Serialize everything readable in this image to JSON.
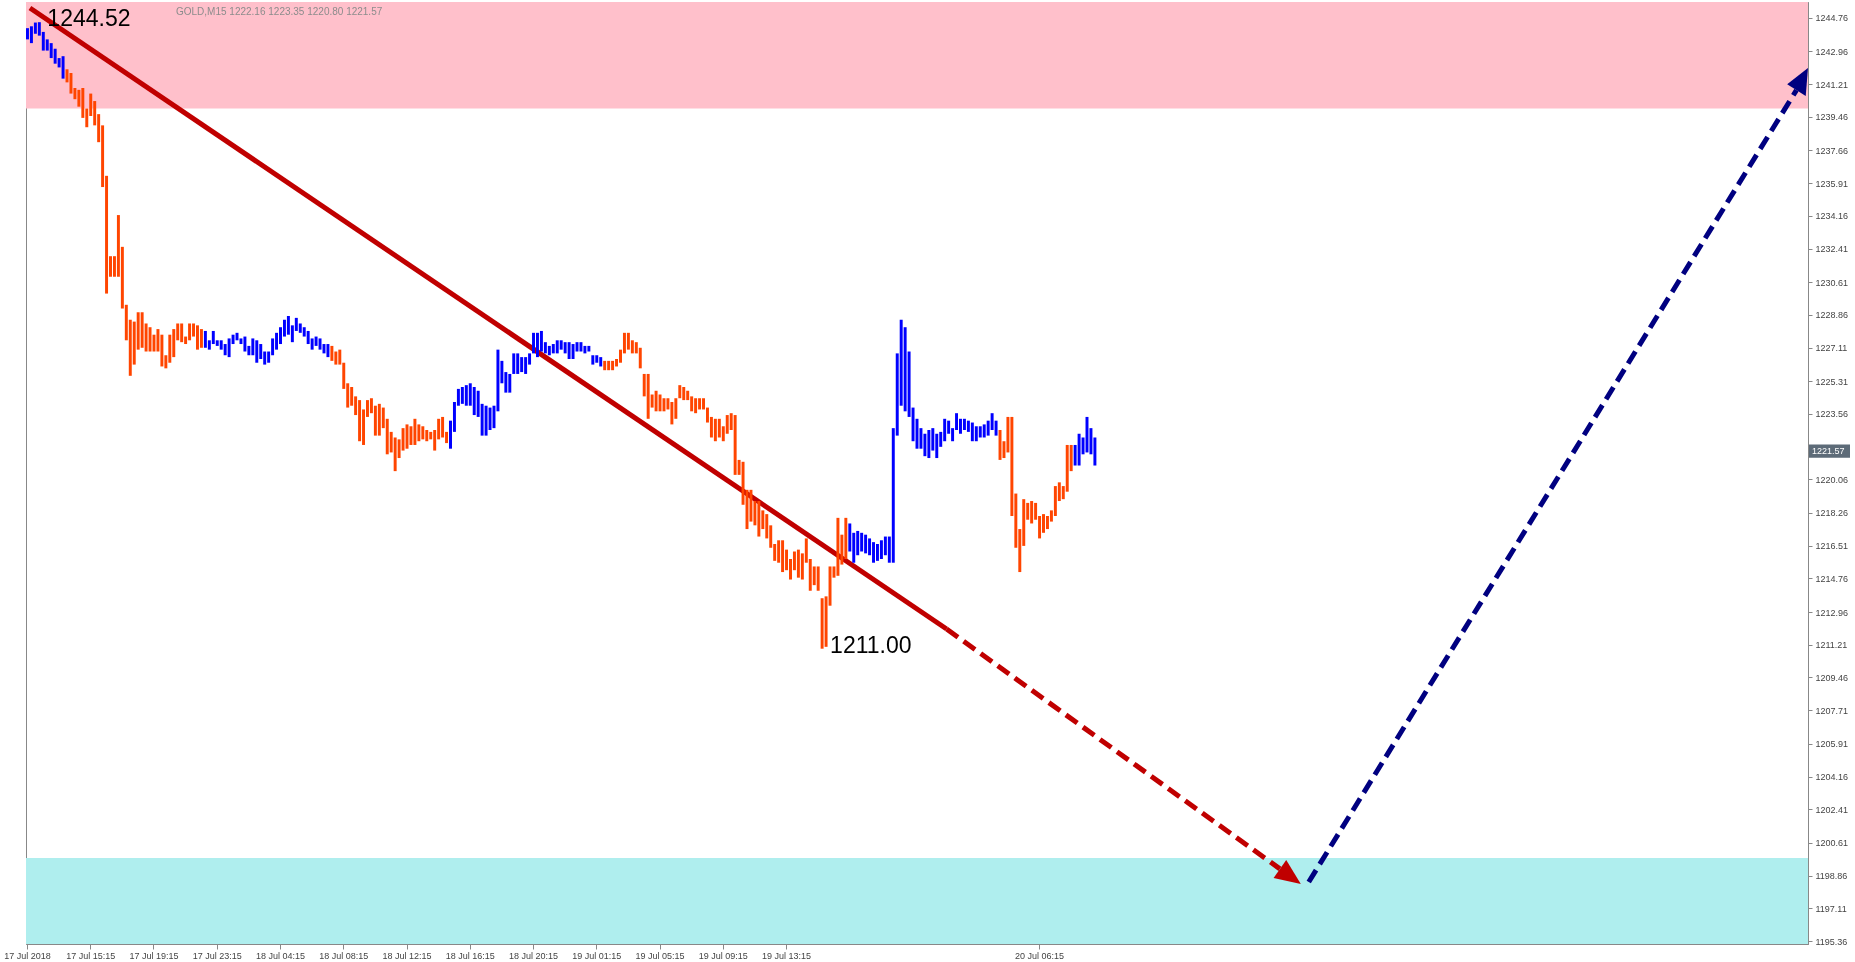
{
  "chart_data": {
    "type": "bar",
    "title": "GOLD,M15  1222.16 1223.35 1220.80 1221.57",
    "categories": [
      "17 Jul 2018",
      null,
      null,
      null,
      null,
      null,
      null,
      null,
      null,
      null,
      null,
      null,
      null,
      null,
      null,
      null,
      "17 Jul 15:15",
      null,
      null,
      null,
      null,
      null,
      null,
      null,
      null,
      null,
      null,
      null,
      null,
      null,
      null,
      null,
      "17 Jul 19:15",
      null,
      null,
      null,
      null,
      null,
      null,
      null,
      null,
      null,
      null,
      null,
      null,
      null,
      null,
      null,
      "17 Jul 23:15",
      null,
      null,
      null,
      null,
      null,
      null,
      null,
      null,
      null,
      null,
      null,
      null,
      null,
      null,
      null,
      "18 Jul 04:15",
      null,
      null,
      null,
      null,
      null,
      null,
      null,
      null,
      null,
      null,
      null,
      null,
      null,
      null,
      null,
      "18 Jul 08:15",
      null,
      null,
      null,
      null,
      null,
      null,
      null,
      null,
      null,
      null,
      null,
      null,
      null,
      null,
      null,
      "18 Jul 12:15",
      null,
      null,
      null,
      null,
      null,
      null,
      null,
      null,
      null,
      null,
      null,
      null,
      null,
      null,
      null,
      "18 Jul 16:15",
      null,
      null,
      null,
      null,
      null,
      null,
      null,
      null,
      null,
      null,
      null,
      null,
      null,
      null,
      null,
      "18 Jul 20:15",
      null,
      null,
      null,
      null,
      null,
      null,
      null,
      null,
      null,
      null,
      null,
      null,
      null,
      null,
      null,
      "19 Jul 01:15",
      null,
      null,
      null,
      null,
      null,
      null,
      null,
      null,
      null,
      null,
      null,
      null,
      null,
      null,
      null,
      "19 Jul 05:15",
      null,
      null,
      null,
      null,
      null,
      null,
      null,
      null,
      null,
      null,
      null,
      null,
      null,
      null,
      null,
      "19 Jul 09:15",
      null,
      null,
      null,
      null,
      null,
      null,
      null,
      null,
      null,
      null,
      null,
      null,
      null,
      null,
      null,
      "19 Jul 13:15",
      null,
      null,
      null,
      null,
      null,
      null,
      null,
      null,
      null,
      null,
      null,
      null,
      null,
      null,
      null,
      null,
      null,
      null,
      null,
      null,
      null,
      null,
      null,
      null,
      null,
      null,
      null,
      null,
      null,
      null,
      null,
      null,
      null,
      null,
      null,
      null,
      null,
      null,
      null,
      null,
      null,
      null,
      null,
      null,
      null,
      null,
      null,
      null,
      null,
      null,
      null,
      null,
      null,
      null,
      null,
      null,
      null,
      null,
      null,
      null,
      null,
      null,
      null,
      "20 Jul 06:15",
      null,
      null,
      null,
      null,
      null,
      null,
      null,
      null,
      null,
      null,
      null,
      null,
      null,
      null,
      null,
      null,
      null,
      null,
      null,
      null,
      null,
      null,
      null,
      null,
      null,
      null,
      null,
      null,
      null,
      null,
      null,
      null,
      null,
      null,
      null,
      null,
      null,
      null,
      null,
      null,
      null,
      null,
      null,
      null,
      null,
      null,
      null,
      null,
      null,
      null,
      null,
      null,
      null,
      null,
      null,
      null,
      null,
      null,
      null,
      null,
      null,
      null,
      null,
      null,
      null,
      null,
      null,
      null,
      null,
      null,
      null,
      null,
      null,
      null,
      null,
      null,
      null,
      null,
      null,
      null,
      null,
      null,
      null,
      null,
      null,
      null,
      null,
      null,
      null,
      null,
      null,
      null,
      null,
      null,
      null,
      null,
      null,
      null,
      null,
      null,
      null,
      null,
      null,
      null,
      null,
      null,
      null,
      null,
      null,
      null,
      null,
      null,
      null,
      null,
      null,
      null,
      null,
      null,
      null,
      null,
      null,
      null,
      null,
      null,
      null,
      null,
      null,
      null,
      null,
      null,
      null,
      null,
      null,
      null,
      null,
      null,
      null,
      null,
      null,
      null,
      null,
      null,
      null,
      null,
      null,
      null,
      null,
      null,
      null,
      null,
      null,
      null,
      null,
      null,
      null,
      null,
      null,
      null,
      null,
      null,
      null,
      null,
      null,
      null,
      null,
      null,
      null,
      null,
      null,
      null,
      null,
      null,
      null,
      null,
      null,
      null,
      null,
      null,
      null,
      null,
      null,
      null,
      null,
      null,
      null,
      null,
      null,
      null,
      null,
      null,
      null,
      null,
      null,
      null
    ],
    "base": [
      1243.6,
      1243.4,
      1243.9,
      1243.8,
      1243.0,
      1243.0,
      1242.6,
      1242.3,
      1242.1,
      1241.5,
      1241.3,
      1240.7,
      1240.4,
      1240.0,
      1239.4,
      1238.9,
      1239.5,
      1239.0,
      1238.1,
      1235.7,
      1230.0,
      1230.9,
      1230.9,
      1230.9,
      1229.2,
      1227.5,
      1225.6,
      1226.2,
      1227.0,
      1227.1,
      1226.9,
      1226.9,
      1226.9,
      1226.9,
      1226.1,
      1226.0,
      1226.3,
      1226.6,
      1227.5,
      1227.4,
      1227.3,
      1227.5,
      1227.7,
      1227.0,
      1227.1,
      1227.1,
      1227.0,
      1227.3,
      1227.2,
      1227.0,
      1226.7,
      1226.6,
      1227.3,
      1227.5,
      1227.3,
      1226.9,
      1226.7,
      1226.7,
      1226.3,
      1226.5,
      1226.2,
      1226.3,
      1226.7,
      1227.0,
      1227.3,
      1227.7,
      1227.8,
      1227.4,
      1228.0,
      1227.9,
      1227.7,
      1227.3,
      1227.0,
      1227.2,
      1227.0,
      1226.8,
      1226.6,
      1226.4,
      1226.2,
      1226.2,
      1224.9,
      1223.9,
      1224.0,
      1223.5,
      1222.1,
      1221.9,
      1223.4,
      1223.6,
      1222.4,
      1222.4,
      1222.8,
      1221.4,
      1221.5,
      1220.5,
      1221.2,
      1221.6,
      1221.7,
      1221.9,
      1221.9,
      1222.1,
      1222.2,
      1222.1,
      1222.2,
      1221.6,
      1222.2,
      1222.3,
      1222.0,
      1221.7,
      1222.6,
      1224.0,
      1224.1,
      1224.0,
      1224.0,
      1223.5,
      1223.4,
      1222.4,
      1222.4,
      1222.7,
      1222.8,
      1223.7,
      1225.2,
      1224.7,
      1224.7,
      1225.7,
      1225.7,
      1225.8,
      1225.7,
      1226.2,
      1226.8,
      1226.6,
      1226.9,
      1226.8,
      1226.7,
      1226.8,
      1226.8,
      1227.0,
      1226.8,
      1226.5,
      1226.5,
      1226.9,
      1226.9,
      1226.8,
      1226.9,
      1226.2,
      1226.3,
      1226.1,
      1225.9,
      1225.9,
      1225.9,
      1226.1,
      1226.3,
      1226.8,
      1227.0,
      1226.8,
      1226.8,
      1226.0,
      1224.5,
      1223.3,
      1223.9,
      1223.7,
      1223.7,
      1223.7,
      1223.8,
      1223.0,
      1223.3,
      1224.4,
      1224.3,
      1224.3,
      1223.7,
      1223.6,
      1223.8,
      1223.8,
      1223.1,
      1222.3,
      1222.1,
      1222.3,
      1222.1,
      1222.5,
      1222.7,
      1220.3,
      1220.3,
      1218.7,
      1217.4,
      1217.8,
      1217.6,
      1217.0,
      1217.4,
      1216.9,
      1216.4,
      1215.7,
      1215.6,
      1215.1,
      1215.2,
      1214.7,
      1215.2,
      1214.8,
      1214.7,
      1215.6,
      1214.1,
      1214.4,
      1214.1,
      1211.0,
      1211.1,
      1213.3,
      1214.8,
      1214.9,
      1215.5,
      1215.8,
      1216.2,
      1215.6,
      1216.0,
      1216.2,
      1216.1,
      1216.0,
      1215.6,
      1215.7,
      1215.8,
      1216.0,
      1215.6,
      1215.6,
      1222.4,
      1224.0,
      1223.7,
      1223.4,
      1222.1,
      1221.7,
      1221.7,
      1221.3,
      1221.2,
      1221.6,
      1221.2,
      1221.8,
      1222.1,
      1222.5,
      1222.1,
      1222.7,
      1222.5,
      1222.7,
      1222.6,
      1222.1,
      1222.1,
      1222.3,
      1222.3,
      1222.4,
      1222.7,
      1222.4,
      1221.1,
      1221.2,
      1221.5,
      1218.1,
      1216.4,
      1215.1,
      1216.5,
      1217.9,
      1217.7,
      1217.9,
      1216.9,
      1217.2,
      1217.4,
      1217.8,
      1218.1,
      1218.9,
      1219.0,
      1219.4,
      1220.5,
      1220.8,
      1220.8,
      1221.4,
      1221.5,
      1221.4,
      1220.8,
      null,
      null,
      null,
      null,
      null,
      null,
      null,
      null,
      null,
      null,
      null,
      null,
      null,
      null,
      null,
      null,
      null,
      null,
      null,
      null,
      null,
      null,
      null,
      null,
      null,
      null,
      null,
      null,
      null,
      null,
      null,
      null,
      null,
      null,
      null,
      null,
      null,
      null,
      null,
      null,
      null,
      null,
      null,
      null,
      null,
      null,
      null,
      null,
      null,
      null,
      null,
      null,
      null,
      null,
      null,
      null,
      null,
      null,
      null,
      null,
      null,
      null,
      null,
      null,
      null,
      null,
      null,
      null,
      null,
      null,
      null,
      null,
      null,
      null,
      null,
      null,
      null,
      null,
      null,
      null,
      null,
      null,
      null,
      null,
      null,
      null,
      null,
      null,
      null,
      null,
      null,
      null,
      null,
      null,
      null,
      null,
      null,
      null,
      null,
      null,
      null,
      null,
      null,
      null,
      null,
      null,
      null,
      null,
      null,
      null,
      null,
      null,
      null,
      null,
      null,
      null,
      null,
      null,
      null,
      null,
      null,
      null,
      null,
      null,
      null,
      null,
      null,
      null,
      null,
      null,
      null,
      null,
      null,
      null,
      null,
      null,
      null,
      null,
      null,
      null,
      null,
      null,
      null,
      null,
      null,
      null,
      null,
      null,
      null,
      null,
      null,
      null,
      null,
      null,
      null,
      null,
      null,
      null,
      null,
      null,
      null,
      null,
      null,
      null,
      null,
      null,
      null,
      null,
      null,
      null,
      null,
      null,
      null,
      null,
      null,
      null,
      null,
      null,
      null,
      null
    ],
    "values": [
      0.6,
      0.9,
      0.6,
      0.72,
      1.0,
      0.6,
      0.8,
      0.8,
      0.5,
      1.2,
      0.7,
      1.1,
      0.6,
      0.9,
      1.6,
      1.0,
      1.2,
      1.3,
      1.5,
      3.3,
      6.3,
      1.1,
      1.1,
      3.3,
      3.3,
      1.9,
      3.0,
      2.3,
      2.0,
      1.9,
      1.5,
      1.3,
      0.9,
      1.2,
      1.7,
      0.7,
      1.5,
      1.5,
      0.9,
      1.0,
      0.4,
      0.9,
      0.7,
      1.3,
      1.0,
      0.9,
      0.5,
      0.7,
      0.3,
      0.5,
      0.6,
      1.0,
      0.5,
      0.4,
      0.3,
      0.8,
      0.5,
      0.9,
      1.2,
      0.8,
      0.7,
      0.6,
      0.9,
      0.9,
      0.9,
      0.9,
      1.0,
      0.9,
      0.7,
      0.5,
      0.5,
      0.7,
      0.6,
      0.5,
      0.6,
      0.5,
      0.7,
      0.8,
      0.7,
      0.8,
      1.4,
      1.3,
      1.0,
      1.0,
      2.2,
      1.9,
      0.9,
      0.8,
      1.6,
      1.7,
      1.1,
      1.9,
      1.1,
      1.8,
      1.0,
      1.2,
      1.3,
      1.0,
      1.4,
      0.9,
      0.7,
      0.6,
      0.4,
      1.1,
      1.1,
      1.1,
      0.6,
      1.5,
      1.6,
      0.9,
      0.9,
      1.1,
      1.2,
      1.5,
      1.4,
      1.7,
      1.6,
      1.2,
      1.2,
      3.3,
      1.2,
      1.1,
      1.0,
      1.1,
      1.1,
      0.8,
      0.9,
      0.6,
      1.1,
      1.3,
      1.1,
      0.6,
      0.5,
      0.5,
      0.7,
      0.5,
      0.6,
      0.9,
      0.8,
      0.5,
      0.5,
      0.4,
      0.3,
      0.5,
      0.4,
      0.5,
      0.5,
      0.5,
      0.5,
      0.4,
      0.7,
      1.1,
      0.9,
      0.7,
      0.6,
      1.1,
      1.2,
      2.4,
      0.7,
      1.1,
      0.9,
      0.7,
      0.6,
      1.2,
      1.1,
      0.7,
      0.7,
      0.5,
      0.8,
      0.8,
      0.6,
      0.6,
      0.8,
      1.1,
      1.2,
      1.0,
      0.8,
      1.0,
      0.9,
      3.2,
      0.8,
      2.3,
      2.1,
      1.7,
      1.3,
      1.9,
      1.0,
      1.3,
      1.2,
      0.9,
      1.2,
      1.7,
      1.1,
      1.1,
      1.0,
      1.5,
      1.4,
      1.3,
      1.7,
      1.0,
      1.3,
      2.7,
      2.7,
      2.1,
      0.6,
      3.1,
      1.6,
      2.2,
      1.5,
      1.6,
      1.3,
      1.0,
      1.0,
      0.9,
      1.1,
      0.9,
      1.0,
      1.0,
      1.4,
      7.2,
      4.4,
      4.6,
      4.5,
      3.5,
      1.8,
      1.6,
      1.1,
      1.2,
      1.5,
      1.2,
      1.3,
      0.8,
      1.2,
      0.7,
      0.7,
      0.9,
      0.8,
      0.6,
      0.6,
      1.0,
      0.8,
      0.6,
      0.7,
      0.8,
      0.9,
      0.8,
      1.6,
      0.9,
      1.9,
      5.3,
      2.9,
      2.3,
      2.5,
      0.9,
      1.2,
      0.9,
      1.2,
      1.0,
      0.7,
      0.6,
      1.6,
      1.0,
      0.7,
      2.5,
      1.4,
      1.1,
      1.7,
      0.9,
      1.9,
      1.4,
      1.5,
      null,
      null,
      null,
      null,
      null,
      null,
      null,
      null,
      null,
      null,
      null,
      null,
      null,
      null,
      null,
      null,
      null,
      null,
      null,
      null,
      null,
      null,
      null,
      null,
      null,
      null,
      null,
      null,
      null,
      null,
      null,
      null,
      null,
      null,
      null,
      null,
      null,
      null,
      null,
      null,
      null,
      null,
      null,
      null,
      null,
      null,
      null,
      null,
      null,
      null,
      null,
      null,
      null,
      null,
      null,
      null,
      null,
      null,
      null,
      null,
      null,
      null,
      null,
      null,
      null,
      null,
      null,
      null,
      null,
      null,
      null,
      null,
      null,
      null,
      null,
      null,
      null,
      null,
      null,
      null,
      null,
      null,
      null,
      null,
      null,
      null,
      null,
      null,
      null,
      null,
      null,
      null,
      null,
      null,
      null,
      null,
      null,
      null,
      null,
      null,
      null,
      null,
      null,
      null,
      null,
      null,
      null,
      null,
      null,
      null,
      null,
      null,
      null,
      null,
      null,
      null,
      null,
      null,
      null,
      null,
      null,
      null,
      null,
      null,
      null,
      null,
      null,
      null,
      null,
      null,
      null,
      null,
      null,
      null,
      null,
      null,
      null,
      null,
      null,
      null,
      null,
      null,
      null,
      null,
      null,
      null,
      null,
      null,
      null,
      null,
      null,
      null,
      null,
      null,
      null,
      null,
      null,
      null,
      null,
      null,
      null,
      null,
      null,
      null,
      null,
      null,
      null,
      null,
      null,
      null,
      null,
      null,
      null,
      null,
      null,
      null,
      null,
      null,
      null,
      null
    ],
    "colors": [
      "#0000ff",
      "#0000ff",
      "#0000ff",
      "#0000ff",
      "#0000ff",
      "#0000ff",
      "#0000ff",
      "#0000ff",
      "#0000ff",
      "#0000ff",
      "#ff4500",
      "#ff4500",
      "#ff4500",
      "#ff4500",
      "#ff4500",
      "#ff4500",
      "#ff4500",
      "#ff4500",
      "#ff4500",
      "#ff4500",
      "#ff4500",
      "#ff4500",
      "#ff4500",
      "#ff4500",
      "#ff4500",
      "#ff4500",
      "#ff4500",
      "#ff4500",
      "#ff4500",
      "#ff4500",
      "#ff4500",
      "#ff4500",
      "#ff4500",
      "#ff4500",
      "#ff4500",
      "#ff4500",
      "#ff4500",
      "#ff4500",
      "#ff4500",
      "#ff4500",
      "#ff4500",
      "#ff4500",
      "#ff4500",
      "#ff4500",
      "#ff4500",
      "#0000ff",
      "#0000ff",
      "#0000ff",
      "#0000ff",
      "#0000ff",
      "#0000ff",
      "#0000ff",
      "#0000ff",
      "#0000ff",
      "#0000ff",
      "#0000ff",
      "#0000ff",
      "#0000ff",
      "#0000ff",
      "#0000ff",
      "#0000ff",
      "#0000ff",
      "#0000ff",
      "#0000ff",
      "#0000ff",
      "#0000ff",
      "#0000ff",
      "#0000ff",
      "#0000ff",
      "#0000ff",
      "#0000ff",
      "#0000ff",
      "#0000ff",
      "#0000ff",
      "#0000ff",
      "#0000ff",
      "#0000ff",
      "#ff4500",
      "#ff4500",
      "#ff4500",
      "#ff4500",
      "#ff4500",
      "#ff4500",
      "#ff4500",
      "#ff4500",
      "#ff4500",
      "#ff4500",
      "#ff4500",
      "#ff4500",
      "#ff4500",
      "#ff4500",
      "#ff4500",
      "#ff4500",
      "#ff4500",
      "#ff4500",
      "#ff4500",
      "#ff4500",
      "#ff4500",
      "#ff4500",
      "#ff4500",
      "#ff4500",
      "#ff4500",
      "#ff4500",
      "#ff4500",
      "#ff4500",
      "#ff4500",
      "#ff4500",
      "#0000ff",
      "#0000ff",
      "#0000ff",
      "#0000ff",
      "#0000ff",
      "#0000ff",
      "#0000ff",
      "#0000ff",
      "#0000ff",
      "#0000ff",
      "#0000ff",
      "#0000ff",
      "#0000ff",
      "#0000ff",
      "#0000ff",
      "#0000ff",
      "#0000ff",
      "#0000ff",
      "#0000ff",
      "#0000ff",
      "#0000ff",
      "#0000ff",
      "#0000ff",
      "#0000ff",
      "#0000ff",
      "#0000ff",
      "#0000ff",
      "#0000ff",
      "#0000ff",
      "#0000ff",
      "#0000ff",
      "#0000ff",
      "#0000ff",
      "#0000ff",
      "#0000ff",
      "#0000ff",
      "#0000ff",
      "#0000ff",
      "#0000ff",
      "#ff4500",
      "#ff4500",
      "#ff4500",
      "#ff4500",
      "#ff4500",
      "#ff4500",
      "#ff4500",
      "#ff4500",
      "#ff4500",
      "#ff4500",
      "#ff4500",
      "#ff4500",
      "#ff4500",
      "#ff4500",
      "#ff4500",
      "#ff4500",
      "#ff4500",
      "#ff4500",
      "#ff4500",
      "#ff4500",
      "#ff4500",
      "#ff4500",
      "#ff4500",
      "#ff4500",
      "#ff4500",
      "#ff4500",
      "#ff4500",
      "#ff4500",
      "#ff4500",
      "#ff4500",
      "#ff4500",
      "#ff4500",
      "#ff4500",
      "#ff4500",
      "#ff4500",
      "#ff4500",
      "#ff4500",
      "#ff4500",
      "#ff4500",
      "#ff4500",
      "#ff4500",
      "#ff4500",
      "#ff4500",
      "#ff4500",
      "#ff4500",
      "#ff4500",
      "#ff4500",
      "#ff4500",
      "#ff4500",
      "#ff4500",
      "#ff4500",
      "#ff4500",
      "#ff4500",
      "#ff4500",
      "#ff4500",
      "#ff4500",
      "#ff4500",
      "#ff4500",
      "#ff4500",
      "#ff4500",
      "#ff4500",
      "#ff4500",
      "#0000ff",
      "#0000ff",
      "#0000ff",
      "#0000ff",
      "#0000ff",
      "#0000ff",
      "#0000ff",
      "#0000ff",
      "#0000ff",
      "#0000ff",
      "#0000ff",
      "#0000ff",
      "#0000ff",
      "#0000ff",
      "#0000ff",
      "#0000ff",
      "#0000ff",
      "#0000ff",
      "#0000ff",
      "#0000ff",
      "#0000ff",
      "#0000ff",
      "#0000ff",
      "#0000ff",
      "#0000ff",
      "#0000ff",
      "#0000ff",
      "#0000ff",
      "#0000ff",
      "#0000ff",
      "#0000ff",
      "#0000ff",
      "#0000ff",
      "#0000ff",
      "#0000ff",
      "#0000ff",
      "#0000ff",
      "#0000ff",
      "#ff4500",
      "#ff4500",
      "#ff4500",
      "#ff4500",
      "#ff4500",
      "#ff4500",
      "#ff4500",
      "#ff4500",
      "#ff4500",
      "#ff4500",
      "#ff4500",
      "#ff4500",
      "#ff4500",
      "#ff4500",
      "#ff4500",
      "#ff4500",
      "#ff4500",
      "#ff4500",
      "#ff4500",
      "#0000ff",
      "#0000ff",
      "#0000ff",
      "#0000ff",
      "#0000ff",
      "#0000ff",
      null,
      null,
      null,
      null,
      null,
      null,
      null,
      null,
      null,
      null,
      null,
      null,
      null,
      null,
      null,
      null,
      null,
      null,
      null,
      null,
      null,
      null,
      null,
      null,
      null,
      null,
      null,
      null,
      null,
      null,
      null,
      null,
      null,
      null,
      null,
      null,
      null,
      null,
      null,
      null,
      null,
      null,
      null,
      null,
      null,
      null,
      null,
      null,
      null,
      null,
      null,
      null,
      null,
      null,
      null,
      null,
      null,
      null,
      null,
      null,
      null,
      null,
      null,
      null,
      null,
      null,
      null,
      null,
      null,
      null,
      null,
      null,
      null,
      null,
      null,
      null,
      null,
      null,
      null,
      null,
      null,
      null,
      null,
      null,
      null,
      null,
      null,
      null,
      null,
      null,
      null,
      null,
      null,
      null,
      null,
      null,
      null,
      null,
      null,
      null,
      null,
      null,
      null,
      null,
      null,
      null,
      null,
      null,
      null,
      null,
      null,
      null,
      null,
      null,
      null,
      null,
      null,
      null,
      null,
      null,
      null,
      null,
      null,
      null,
      null,
      null,
      null,
      null,
      null,
      null,
      null,
      null,
      null,
      null,
      null,
      null,
      null,
      null,
      null,
      null,
      null,
      null,
      null,
      null,
      null,
      null,
      null,
      null,
      null,
      null,
      null,
      null,
      null,
      null,
      null,
      null,
      null,
      null,
      null,
      null,
      null,
      null,
      null,
      null,
      null,
      null,
      null,
      null,
      null,
      null,
      null,
      null,
      null,
      null,
      null,
      null,
      null,
      null,
      null,
      null
    ],
    "ylim": [
      1195.2,
      1245.6
    ],
    "yticks": [
      1244.76,
      1242.96,
      1241.21,
      1239.46,
      1237.66,
      1235.91,
      1234.16,
      1232.41,
      1230.61,
      1228.86,
      1227.11,
      1225.31,
      1223.56,
      1220.06,
      1218.26,
      1216.51,
      1214.76,
      1212.96,
      1211.21,
      1209.46,
      1207.71,
      1205.91,
      1204.16,
      1202.41,
      1200.61,
      1198.86,
      1197.11,
      1195.36
    ],
    "bands": [
      {
        "axis": "y",
        "from": 1239.9,
        "to": 1245.6,
        "color": "#ffc0cb"
      },
      {
        "axis": "y",
        "from": 1195.2,
        "to": 1199.8,
        "color": "#afeeee"
      }
    ],
    "annotations": [
      "1244.52",
      "1211.00",
      {
        "text": "1221.57",
        "y": 1221.57
      }
    ]
  }
}
